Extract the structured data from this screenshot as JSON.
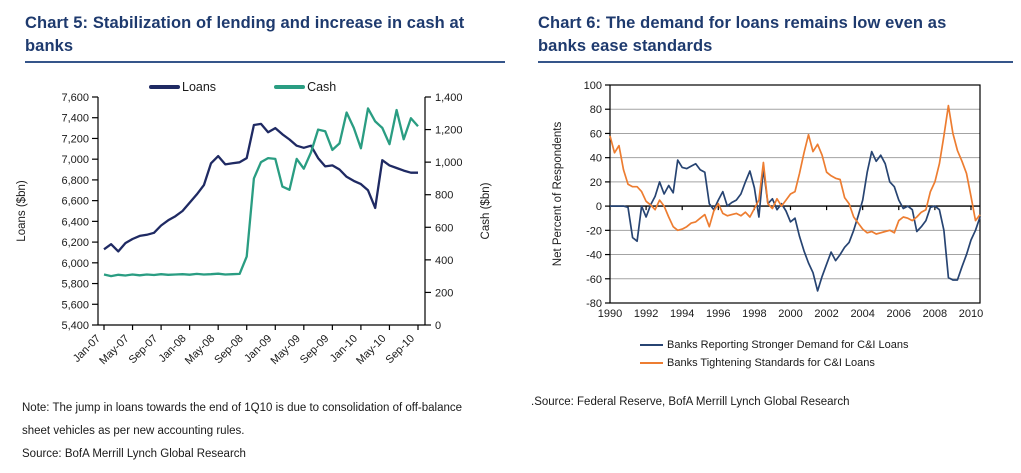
{
  "page": {
    "background": "#ffffff",
    "accent_navy": "#1e3a6e",
    "rule_color": "#35558a"
  },
  "chart5": {
    "title_line1": "Chart 5: Stabilization of lending and increase in cash at",
    "title_line2": "banks",
    "note_lines": [
      "Note: The jump in loans towards the end of 1Q10 is due to consolidation of off-balance",
      "sheet vehicles as per new accounting rules."
    ],
    "source": "Source: BofA Merrill Lynch Global Research"
  },
  "chart6": {
    "title_line1": "Chart 6: The demand for loans remains low even as",
    "title_line2": "banks ease standards",
    "source": ".Source: Federal Reserve, BofA Merrill Lynch Global Research"
  },
  "chart_data": [
    {
      "type": "line",
      "title": "Chart 5: Stabilization of lending and increase in cash at banks",
      "x_unit": "month",
      "x_start_label": "Jan-07",
      "x_end_label": "Sep-10",
      "tick_labels": [
        "Jan-07",
        "May-07",
        "Sep-07",
        "Jan-08",
        "May-08",
        "Sep-08",
        "Jan-09",
        "May-09",
        "Sep-09",
        "Jan-10",
        "May-10",
        "Sep-10"
      ],
      "left_axis": {
        "label": "Loans ($bn)",
        "min": 5400,
        "max": 7600,
        "step": 200
      },
      "right_axis": {
        "label": "Cash ($bn)",
        "min": 0,
        "max": 1400,
        "step": 200
      },
      "legend_position": "top",
      "grid": false,
      "series": [
        {
          "name": "Loans",
          "axis": "left",
          "color": "#1f2a63",
          "values": [
            6130,
            6180,
            6110,
            6190,
            6230,
            6260,
            6270,
            6290,
            6360,
            6410,
            6450,
            6500,
            6580,
            6660,
            6750,
            6960,
            7030,
            6950,
            6960,
            6970,
            7010,
            7330,
            7340,
            7260,
            7300,
            7240,
            7190,
            7130,
            7110,
            7130,
            7010,
            6930,
            6940,
            6900,
            6830,
            6790,
            6760,
            6700,
            6530,
            6990,
            6940,
            6915,
            6890,
            6870,
            6870
          ]
        },
        {
          "name": "Cash",
          "axis": "right",
          "color": "#2a9d82",
          "values": [
            310,
            300,
            308,
            304,
            310,
            305,
            310,
            307,
            312,
            308,
            310,
            312,
            309,
            314,
            310,
            312,
            315,
            310,
            312,
            314,
            420,
            900,
            1000,
            1025,
            1020,
            850,
            830,
            1020,
            960,
            1060,
            1200,
            1190,
            1075,
            1115,
            1305,
            1210,
            1085,
            1330,
            1250,
            1210,
            1110,
            1320,
            1140,
            1270,
            1220
          ]
        }
      ]
    },
    {
      "type": "line",
      "title": "Chart 6: The demand for loans remains low even as banks ease standards",
      "x_range": [
        1990,
        2010.5
      ],
      "x_step": 0.25,
      "x_ticks": [
        1990,
        1992,
        1994,
        1996,
        1998,
        2000,
        2002,
        2004,
        2006,
        2008,
        2010
      ],
      "y_axis": {
        "label": "Net Percent of Respondents",
        "min": -80,
        "max": 100,
        "step": 20
      },
      "legend_position": "bottom",
      "grid": "horizontal",
      "series": [
        {
          "name": "Banks Reporting Stronger Demand for C&I Loans",
          "color": "#274472",
          "values": [
            0,
            0,
            0,
            0,
            -1,
            -26,
            -29,
            0,
            -9,
            1,
            8,
            20,
            10,
            17,
            11,
            38,
            32,
            31,
            33,
            35,
            30,
            28,
            2,
            -3,
            5,
            12,
            0,
            3,
            5,
            10,
            20,
            29,
            15,
            -9,
            31,
            2,
            6,
            -3,
            2,
            -4,
            -13,
            -10,
            -25,
            -37,
            -47,
            -55,
            -70,
            -58,
            -48,
            -38,
            -45,
            -40,
            -34,
            -30,
            -20,
            -8,
            5,
            28,
            45,
            37,
            42,
            35,
            20,
            16,
            5,
            -2,
            0,
            -3,
            -21,
            -17,
            -12,
            -1,
            0,
            -3,
            -20,
            -59,
            -61,
            -61,
            -50,
            -40,
            -28,
            -20,
            -9
          ]
        },
        {
          "name": "Banks Tightening Standards for C&I Loans",
          "color": "#ed7d31",
          "values": [
            58,
            44,
            50,
            30,
            18,
            16,
            16,
            12,
            4,
            1,
            -3,
            5,
            0,
            -9,
            -17,
            -20,
            -19,
            -17,
            -14,
            -13,
            -10,
            -7,
            -17,
            -4,
            2,
            -6,
            -8,
            -7,
            -6,
            -8,
            -5,
            -9,
            -2,
            5,
            36,
            2,
            -2,
            6,
            0,
            5,
            10,
            12,
            27,
            44,
            59,
            45,
            51,
            42,
            28,
            25,
            23,
            22,
            7,
            2,
            -9,
            -14,
            -19,
            -22,
            -21,
            -23,
            -22,
            -21,
            -20,
            -22,
            -12,
            -9,
            -10,
            -12,
            -9,
            -5,
            -3,
            12,
            20,
            35,
            58,
            83,
            60,
            46,
            37,
            27,
            8,
            -12,
            -7
          ]
        }
      ]
    }
  ]
}
